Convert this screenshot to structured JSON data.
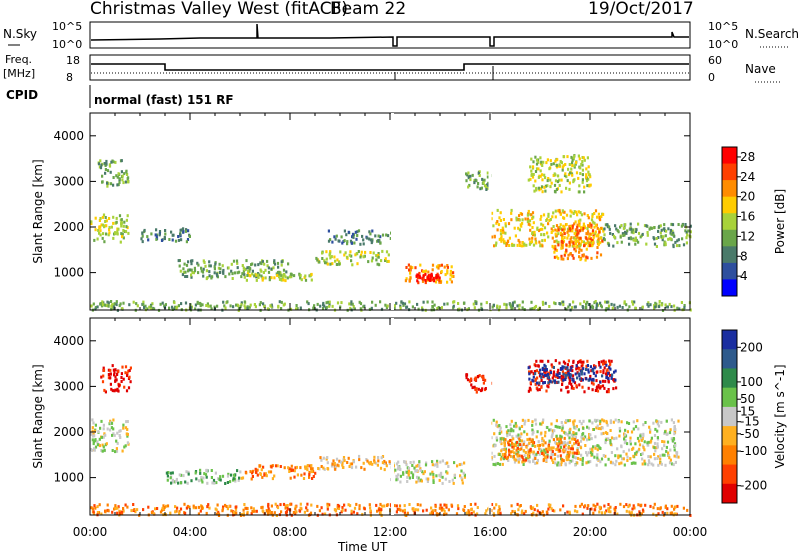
{
  "header": {
    "title": "Christmas Valley West (fitACF)",
    "beam": "Beam 22",
    "date": "19/Oct/2017"
  },
  "side_labels": {
    "nsky": "N.Sky",
    "nsearch": "N.Search",
    "freq": "Freq.",
    "freq_unit": "[MHz]",
    "nave": "Nave",
    "cpid": "CPID",
    "nsky_ticks": [
      "10^5",
      "10^0"
    ],
    "nsearch_ticks": [
      "10^5",
      "10^0"
    ],
    "freq_ticks": [
      "18",
      "8"
    ],
    "nave_ticks": [
      "60",
      "0"
    ]
  },
  "cpid_text": "normal (fast) 151 RF",
  "colors": {
    "power": [
      "#0000ff",
      "#2e4f9e",
      "#4a7a6a",
      "#6aa64a",
      "#a8d23a",
      "#ffcc00",
      "#ff8c00",
      "#ff4000",
      "#ff0000"
    ],
    "velocity": [
      "#1a2ea0",
      "#2e5a8c",
      "#2e8a4a",
      "#6ac24a",
      "#c8c8c8",
      "#ffb020",
      "#ff8000",
      "#ff4000",
      "#e00000"
    ]
  },
  "chart_data": [
    {
      "type": "heatmap",
      "title": "",
      "xlabel": "",
      "ylabel": "Slant Range [km]",
      "x_ticks": [
        "00:00",
        "04:00",
        "08:00",
        "12:00",
        "16:00",
        "20:00",
        "00:00"
      ],
      "xlim": [
        0,
        24
      ],
      "ylim": [
        180,
        4500
      ],
      "y_ticks": [
        1000,
        2000,
        3000,
        4000
      ],
      "colorbar_label": "Power [dB]",
      "colorbar_ticks": [
        4,
        8,
        12,
        16,
        20,
        24,
        28
      ],
      "colorbar_range": [
        0,
        30
      ],
      "regions": [
        {
          "t": [
            0.0,
            1.5
          ],
          "r": [
            1700,
            2300
          ],
          "level": 4
        },
        {
          "t": [
            0.3,
            1.5
          ],
          "r": [
            2900,
            3500
          ],
          "level": 3
        },
        {
          "t": [
            2.0,
            4.0
          ],
          "r": [
            1700,
            2000
          ],
          "level": 2
        },
        {
          "t": [
            3.5,
            8.0
          ],
          "r": [
            900,
            1300
          ],
          "level": 3
        },
        {
          "t": [
            6.0,
            9.0
          ],
          "r": [
            850,
            1050
          ],
          "level": 4
        },
        {
          "t": [
            9.0,
            12.0
          ],
          "r": [
            1200,
            1500
          ],
          "level": 4
        },
        {
          "t": [
            9.5,
            12.0
          ],
          "r": [
            1650,
            1950
          ],
          "level": 2
        },
        {
          "t": [
            12.5,
            14.5
          ],
          "r": [
            800,
            1200
          ],
          "level": 6
        },
        {
          "t": [
            13.0,
            14.0
          ],
          "r": [
            850,
            1000
          ],
          "level": 8
        },
        {
          "t": [
            15.0,
            16.0
          ],
          "r": [
            2850,
            3250
          ],
          "level": 3
        },
        {
          "t": [
            16.0,
            20.5
          ],
          "r": [
            1600,
            2400
          ],
          "level": 5
        },
        {
          "t": [
            18.5,
            20.5
          ],
          "r": [
            1300,
            2100
          ],
          "level": 6
        },
        {
          "t": [
            17.5,
            20.0
          ],
          "r": [
            2800,
            3600
          ],
          "level": 4
        },
        {
          "t": [
            20.5,
            24.0
          ],
          "r": [
            1600,
            2100
          ],
          "level": 3
        },
        {
          "t": [
            0.0,
            24.0
          ],
          "r": [
            200,
            400
          ],
          "level": 3
        }
      ]
    },
    {
      "type": "heatmap",
      "title": "",
      "xlabel": "Time UT",
      "ylabel": "Slant Range [km]",
      "x_ticks": [
        "00:00",
        "04:00",
        "08:00",
        "12:00",
        "16:00",
        "20:00",
        "00:00"
      ],
      "xlim": [
        0,
        24
      ],
      "ylim": [
        180,
        4500
      ],
      "y_ticks": [
        1000,
        2000,
        3000,
        4000
      ],
      "colorbar_label": "Velocity [m s^-1]",
      "colorbar_ticks": [
        200,
        100,
        50,
        15,
        -15,
        -50,
        -100,
        -200
      ],
      "colorbar_range": [
        -250,
        250
      ],
      "regions": [
        {
          "t": [
            0.0,
            1.5
          ],
          "r": [
            1600,
            2300
          ],
          "level": 4
        },
        {
          "t": [
            0.4,
            1.6
          ],
          "r": [
            2900,
            3500
          ],
          "level": 8
        },
        {
          "t": [
            3.0,
            6.0
          ],
          "r": [
            900,
            1200
          ],
          "level": 3
        },
        {
          "t": [
            6.0,
            9.0
          ],
          "r": [
            1000,
            1300
          ],
          "level": 6
        },
        {
          "t": [
            9.0,
            12.0
          ],
          "r": [
            1200,
            1500
          ],
          "level": 5
        },
        {
          "t": [
            12.0,
            15.0
          ],
          "r": [
            900,
            1400
          ],
          "level": 4
        },
        {
          "t": [
            15.0,
            16.0
          ],
          "r": [
            2900,
            3300
          ],
          "level": 8
        },
        {
          "t": [
            16.0,
            23.5
          ],
          "r": [
            1300,
            2300
          ],
          "level": 4
        },
        {
          "t": [
            16.5,
            19.5
          ],
          "r": [
            1400,
            1900
          ],
          "level": 6
        },
        {
          "t": [
            17.5,
            21.0
          ],
          "r": [
            2900,
            3600
          ],
          "level": 8
        },
        {
          "t": [
            17.5,
            21.0
          ],
          "r": [
            3100,
            3500
          ],
          "level": 0
        },
        {
          "t": [
            0.0,
            24.0
          ],
          "r": [
            200,
            450
          ],
          "level": 6
        }
      ]
    }
  ]
}
